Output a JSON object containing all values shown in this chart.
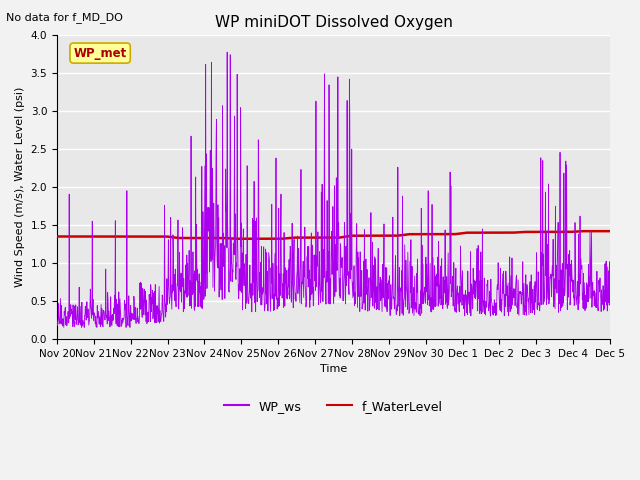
{
  "title": "WP miniDOT Dissolved Oxygen",
  "top_left_text": "No data for f_MD_DO",
  "xlabel": "Time",
  "ylabel": "Wind Speed (m/s), Water Level (psi)",
  "ylim": [
    0.0,
    4.0
  ],
  "yticks": [
    0.0,
    0.5,
    1.0,
    1.5,
    2.0,
    2.5,
    3.0,
    3.5,
    4.0
  ],
  "legend_labels": [
    "WP_ws",
    "f_WaterLevel"
  ],
  "ws_color": "#aa00ee",
  "wl_color": "#cc0000",
  "annotation_text": "WP_met",
  "annotation_color": "#aa0000",
  "annotation_bg": "#ffff99",
  "annotation_edge": "#ccaa00",
  "axes_bg": "#e8e8e8",
  "fig_bg": "#f2f2f2",
  "grid_color": "#ffffff",
  "title_fontsize": 11,
  "label_fontsize": 8,
  "tick_fontsize": 7.5,
  "legend_fontsize": 9,
  "annot_fontsize": 8.5
}
